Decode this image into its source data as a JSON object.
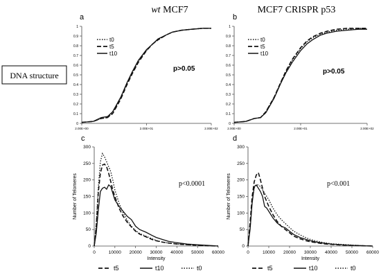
{
  "titles": {
    "left_prefix": "wt",
    "left_rest": " MCF7",
    "right": "MCF7 CRISPR p53"
  },
  "row_label": "DNA structure",
  "panels": [
    {
      "letter": "a",
      "pvalue": "p>0.05",
      "xticks": [
        "2.00E+00",
        "2.00E+01",
        "2.00E+02"
      ],
      "yticks": [
        "0",
        "0.1",
        "0.2",
        "0.3",
        "0.4",
        "0.5",
        "0.6",
        "0.7",
        "0.8",
        "0.9",
        "1"
      ],
      "legend": [
        "t0",
        "t5",
        "t10"
      ]
    },
    {
      "letter": "b",
      "pvalue": "p>0.05",
      "xticks": [
        "2.00E+00",
        "2.00E+01",
        "2.00E+02"
      ],
      "yticks": [
        "0",
        "0.1",
        "0.2",
        "0.3",
        "0.4",
        "0.5",
        "0.6",
        "0.7",
        "0.8",
        "0.9",
        "1"
      ],
      "legend": [
        "t0",
        "t5",
        "t10"
      ]
    },
    {
      "letter": "c",
      "pvalue": "p<0.0001",
      "ylabel": "Number of Telomeres",
      "xlabel": "Intensity",
      "yticks": [
        "0",
        "50",
        "100",
        "150",
        "200",
        "250",
        "300"
      ],
      "xticks": [
        "0",
        "10000",
        "20000",
        "30000",
        "40000",
        "50000",
        "60000"
      ],
      "legend": [
        "t5",
        "t10",
        "t0"
      ]
    },
    {
      "letter": "d",
      "pvalue": "p<0.001",
      "ylabel": "Number of Telomeres",
      "xlabel": "Intensity",
      "yticks": [
        "0",
        "50",
        "100",
        "150",
        "200",
        "250",
        "300"
      ],
      "xticks": [
        "0",
        "10000",
        "20000",
        "30000",
        "40000",
        "50000",
        "60000"
      ],
      "legend": [
        "t5",
        "t10",
        "t0"
      ]
    }
  ],
  "chart_data": [
    {
      "type": "line",
      "panel": "a",
      "xscale": "log",
      "xlim": [
        2,
        200
      ],
      "ylim": [
        0,
        1
      ],
      "x": [
        2,
        3,
        4,
        5,
        6,
        7,
        8,
        10,
        12,
        15,
        20,
        25,
        30,
        40,
        50,
        70,
        100,
        150,
        200
      ],
      "series": [
        {
          "name": "t0",
          "style": "dotted",
          "values": [
            0.01,
            0.02,
            0.05,
            0.06,
            0.11,
            0.19,
            0.26,
            0.41,
            0.52,
            0.64,
            0.75,
            0.82,
            0.86,
            0.91,
            0.94,
            0.96,
            0.97,
            0.98,
            0.98
          ]
        },
        {
          "name": "t5",
          "style": "dashed",
          "values": [
            0.01,
            0.02,
            0.05,
            0.06,
            0.1,
            0.18,
            0.25,
            0.4,
            0.51,
            0.63,
            0.75,
            0.82,
            0.86,
            0.91,
            0.94,
            0.96,
            0.97,
            0.98,
            0.98
          ]
        },
        {
          "name": "t10",
          "style": "solid",
          "values": [
            0.01,
            0.02,
            0.06,
            0.07,
            0.12,
            0.2,
            0.27,
            0.42,
            0.53,
            0.65,
            0.76,
            0.82,
            0.87,
            0.91,
            0.94,
            0.96,
            0.97,
            0.98,
            0.98
          ]
        }
      ]
    },
    {
      "type": "line",
      "panel": "b",
      "xscale": "log",
      "xlim": [
        2,
        200
      ],
      "ylim": [
        0,
        1
      ],
      "x": [
        2,
        3,
        4,
        5,
        6,
        7,
        8,
        10,
        12,
        15,
        20,
        25,
        30,
        40,
        50,
        70,
        100,
        150,
        200
      ],
      "series": [
        {
          "name": "t0",
          "style": "dotted",
          "values": [
            0.01,
            0.02,
            0.05,
            0.06,
            0.12,
            0.2,
            0.27,
            0.42,
            0.53,
            0.65,
            0.77,
            0.84,
            0.88,
            0.92,
            0.94,
            0.96,
            0.97,
            0.98,
            0.98
          ]
        },
        {
          "name": "t5",
          "style": "dashed",
          "values": [
            0.01,
            0.02,
            0.05,
            0.06,
            0.12,
            0.2,
            0.27,
            0.42,
            0.54,
            0.66,
            0.78,
            0.85,
            0.89,
            0.93,
            0.95,
            0.97,
            0.98,
            0.98,
            0.98
          ]
        },
        {
          "name": "t10",
          "style": "solid",
          "values": [
            0.01,
            0.02,
            0.05,
            0.06,
            0.11,
            0.19,
            0.26,
            0.41,
            0.52,
            0.63,
            0.75,
            0.82,
            0.86,
            0.91,
            0.93,
            0.95,
            0.96,
            0.97,
            0.97
          ]
        }
      ]
    },
    {
      "type": "line",
      "panel": "c",
      "xlim": [
        0,
        60000
      ],
      "ylim": [
        0,
        300
      ],
      "x": [
        0,
        1000,
        2000,
        3000,
        4000,
        5000,
        6000,
        7000,
        8000,
        9000,
        10000,
        12000,
        14000,
        16000,
        18000,
        20000,
        22000,
        25000,
        28000,
        30000,
        33000,
        36000,
        40000,
        45000,
        50000,
        55000,
        60000
      ],
      "series": [
        {
          "name": "t5",
          "style": "dashed",
          "values": [
            0,
            60,
            165,
            220,
            245,
            248,
            240,
            220,
            195,
            170,
            150,
            115,
            90,
            72,
            58,
            45,
            36,
            28,
            20,
            16,
            12,
            9,
            6,
            4,
            2,
            1,
            0
          ]
        },
        {
          "name": "t10",
          "style": "solid",
          "values": [
            0,
            40,
            110,
            165,
            175,
            178,
            172,
            185,
            180,
            160,
            140,
            120,
            105,
            90,
            80,
            60,
            50,
            42,
            32,
            26,
            20,
            14,
            10,
            6,
            4,
            2,
            0
          ]
        },
        {
          "name": "t0",
          "style": "dotted",
          "values": [
            0,
            70,
            180,
            255,
            280,
            270,
            255,
            240,
            225,
            200,
            170,
            130,
            100,
            78,
            60,
            47,
            38,
            30,
            22,
            17,
            12,
            9,
            6,
            4,
            2,
            1,
            0
          ]
        }
      ]
    },
    {
      "type": "line",
      "panel": "d",
      "xlim": [
        0,
        60000
      ],
      "ylim": [
        0,
        300
      ],
      "x": [
        0,
        1000,
        2000,
        3000,
        4000,
        5000,
        6000,
        7000,
        8000,
        9000,
        10000,
        12000,
        14000,
        16000,
        18000,
        20000,
        22000,
        25000,
        28000,
        30000,
        33000,
        36000,
        40000,
        45000,
        50000,
        55000,
        60000
      ],
      "series": [
        {
          "name": "t5",
          "style": "dashed",
          "values": [
            0,
            70,
            150,
            195,
            215,
            222,
            200,
            175,
            150,
            135,
            120,
            95,
            75,
            60,
            50,
            40,
            30,
            22,
            16,
            13,
            10,
            7,
            5,
            3,
            2,
            1,
            0
          ]
        },
        {
          "name": "t10",
          "style": "solid",
          "values": [
            0,
            50,
            130,
            180,
            185,
            175,
            165,
            150,
            120,
            115,
            105,
            85,
            70,
            60,
            55,
            45,
            35,
            26,
            20,
            16,
            12,
            9,
            6,
            4,
            2,
            1,
            0
          ]
        },
        {
          "name": "t0",
          "style": "dotted",
          "values": [
            0,
            55,
            135,
            175,
            185,
            185,
            180,
            170,
            160,
            150,
            140,
            115,
            95,
            80,
            68,
            56,
            45,
            34,
            25,
            20,
            15,
            11,
            7,
            5,
            3,
            1,
            0
          ]
        }
      ]
    }
  ]
}
